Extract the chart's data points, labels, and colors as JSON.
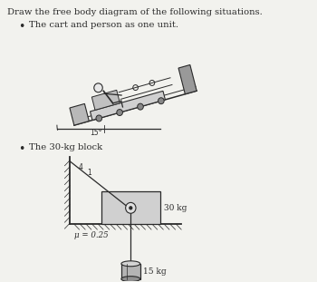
{
  "title": "Draw the free body diagram of the following situations.",
  "bullet1": "The cart and person as one unit.",
  "bullet2": "The 30-kg block",
  "angle_label": "15°",
  "mu_label": "μ = 0.25",
  "mass1_label": "30 kg",
  "mass2_label": "15 kg",
  "bg_color": "#f2f2ee",
  "line_color": "#2a2a2a",
  "cart_fill": "#d4d4d4",
  "block_fill": "#c8c8c8",
  "cyl_fill": "#b0b0b0"
}
